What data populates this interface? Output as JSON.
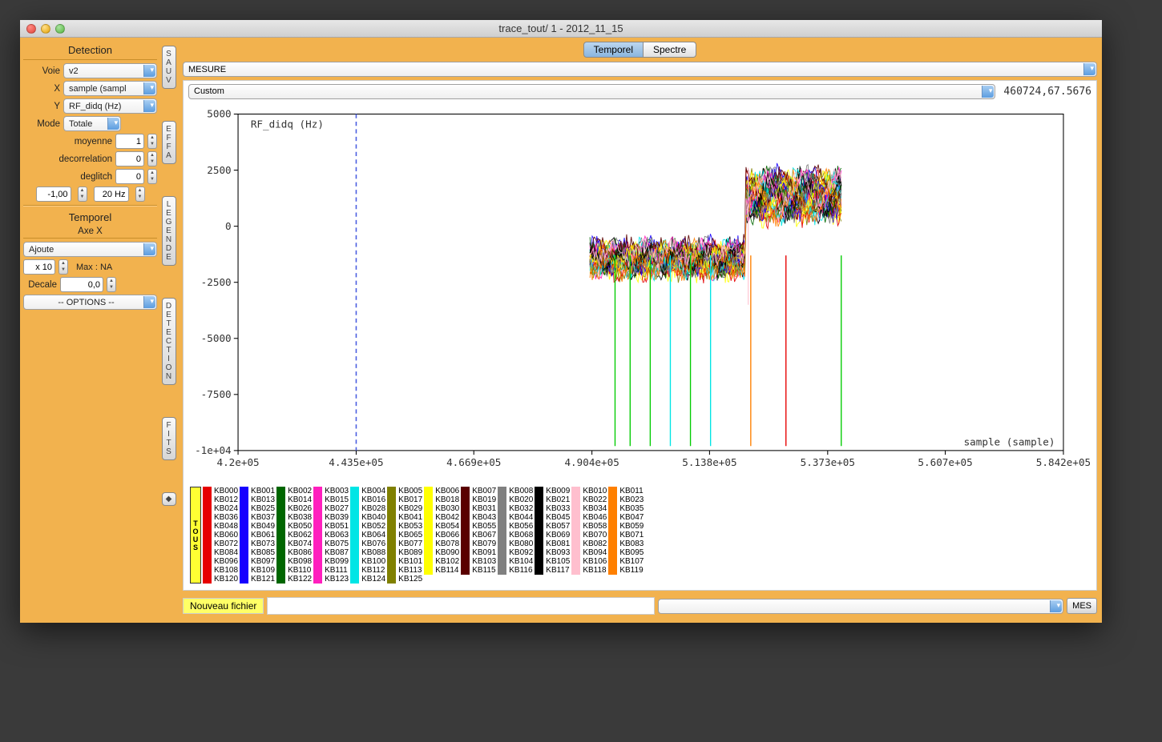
{
  "window": {
    "title": "trace_tout/ 1 - 2012_11_15"
  },
  "sidebar": {
    "detection": {
      "title": "Detection",
      "voie_label": "Voie",
      "voie_value": "v2",
      "x_label": "X",
      "x_value": "sample (sampl",
      "y_label": "Y",
      "y_value": "RF_didq (Hz)",
      "mode_label": "Mode",
      "mode_value": "Totale",
      "moyenne_label": "moyenne",
      "moyenne_value": "1",
      "decorr_label": "decorrelation",
      "decorr_value": "0",
      "deglitch_label": "deglitch",
      "deglitch_value": "0",
      "filt1": "-1,00",
      "filt2": "20 Hz"
    },
    "temporel": {
      "title": "Temporel",
      "axex_title": "Axe X",
      "ajoute": "Ajoute",
      "x10": "x 10",
      "maxna": "Max : NA",
      "decale_label": "Decale",
      "decale_value": "0,0",
      "options": "-- OPTIONS --"
    }
  },
  "vbuttons": {
    "sauv": "SAUV",
    "effa": "EFFA",
    "legende": "LEGENDE",
    "detection": "DETECTION",
    "fits": "FITS",
    "unknown": "◆"
  },
  "tabs": {
    "temporel": "Temporel",
    "spectre": "Spectre",
    "active": "temporel"
  },
  "mesure_select": "MESURE",
  "toolbar": {
    "custom": "Custom",
    "coord": "460724,67.5676"
  },
  "chart": {
    "type": "line",
    "ylabel": "RF_didq (Hz)",
    "xlabel": "sample (sample)",
    "xlim": [
      420000,
      584200
    ],
    "ylim": [
      -10000,
      5000
    ],
    "xticks": [
      "4.2e+05",
      "4.435e+05",
      "4.669e+05",
      "4.904e+05",
      "5.138e+05",
      "5.373e+05",
      "5.607e+05",
      "5.842e+05"
    ],
    "yticks": [
      "5000",
      "2500",
      "0",
      "-2500",
      "-5000",
      "-7500",
      "-1e+04"
    ],
    "cursor_x": 443500,
    "cursor_color": "#4a5de0",
    "background_color": "#ffffff",
    "axis_color": "#000000",
    "label_fontsize": 12,
    "label_font": "Menlo, monospace",
    "data_xrange": [
      490000,
      540000
    ],
    "band_main_y": [
      -2200,
      -700
    ],
    "band_step_x": 521000,
    "band_step_y": [
      100,
      2600
    ]
  },
  "legend": {
    "tous_label": "TOUS",
    "palette": [
      "#e60000",
      "#1600ff",
      "#006600",
      "#ff1fbe",
      "#00e5e5",
      "#808000",
      "#ffff00",
      "#5a0000",
      "#808080",
      "#000000",
      "#ffbfce",
      "#ff8000"
    ],
    "count": 126,
    "prefix": "KB"
  },
  "bottom": {
    "nouveau": "Nouveau fichier",
    "mes": "MES"
  }
}
